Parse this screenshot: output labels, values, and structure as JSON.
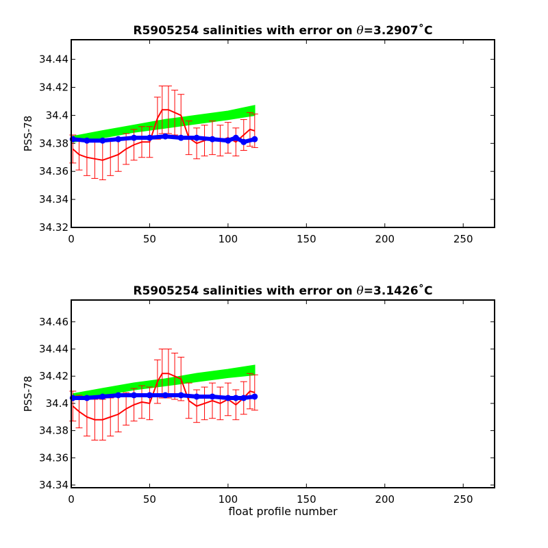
{
  "chart_data": [
    {
      "type": "line",
      "title": "R5905254 salinities with error on θ=3.2907˚C",
      "title_parts": {
        "prefix": "R5905254 salinities with error on ",
        "symbol": "θ",
        "suffix": "=3.2907˚C"
      },
      "xlabel": "",
      "ylabel": "PSS-78",
      "xlim": [
        0,
        270
      ],
      "ylim": [
        34.32,
        34.454
      ],
      "xticks": [
        0,
        50,
        100,
        150,
        200,
        250
      ],
      "yticks": [
        34.32,
        34.34,
        34.36,
        34.38,
        34.4,
        34.42,
        34.44
      ],
      "ytick_labels": [
        "34.32",
        "34.34",
        "34.36",
        "34.38",
        "34.4",
        "34.42",
        "34.44"
      ],
      "grid": false,
      "series": [
        {
          "color": "#00ff00",
          "role": "band",
          "x": [
            1,
            20,
            40,
            60,
            80,
            100,
            117
          ],
          "lower": [
            34.381,
            34.384,
            34.388,
            34.391,
            34.394,
            34.397,
            34.4
          ],
          "upper": [
            34.385,
            34.389,
            34.393,
            34.397,
            34.4,
            34.403,
            34.407
          ]
        },
        {
          "color": "#ff0000",
          "role": "line_with_errorbars",
          "x": [
            1,
            5,
            10,
            15,
            20,
            25,
            30,
            35,
            40,
            45,
            50,
            55,
            58,
            62,
            66,
            70,
            75,
            80,
            85,
            90,
            95,
            100,
            105,
            110,
            114,
            117
          ],
          "y": [
            34.376,
            34.372,
            34.37,
            34.369,
            34.368,
            34.37,
            34.372,
            34.376,
            34.379,
            34.381,
            34.381,
            34.398,
            34.404,
            34.404,
            34.402,
            34.4,
            34.384,
            34.38,
            34.382,
            34.384,
            34.382,
            34.384,
            34.381,
            34.386,
            34.39,
            34.389
          ],
          "err": [
            0.01,
            0.011,
            0.013,
            0.014,
            0.014,
            0.013,
            0.012,
            0.011,
            0.011,
            0.011,
            0.011,
            0.015,
            0.017,
            0.017,
            0.016,
            0.015,
            0.012,
            0.011,
            0.011,
            0.012,
            0.011,
            0.011,
            0.01,
            0.011,
            0.012,
            0.012
          ]
        },
        {
          "color": "#0000ff",
          "role": "markers",
          "x": [
            1,
            10,
            20,
            30,
            40,
            50,
            60,
            70,
            80,
            90,
            100,
            105,
            110,
            117
          ],
          "y": [
            34.383,
            34.382,
            34.382,
            34.383,
            34.384,
            34.384,
            34.385,
            34.384,
            34.384,
            34.383,
            34.382,
            34.384,
            34.381,
            34.383
          ]
        }
      ]
    },
    {
      "type": "line",
      "title": "R5905254 salinities with error on θ=3.1426˚C",
      "title_parts": {
        "prefix": "R5905254 salinities with error on ",
        "symbol": "θ",
        "suffix": "=3.1426˚C"
      },
      "xlabel": "float profile number",
      "ylabel": "PSS-78",
      "xlim": [
        0,
        270
      ],
      "ylim": [
        34.338,
        34.476
      ],
      "xticks": [
        0,
        50,
        100,
        150,
        200,
        250
      ],
      "yticks": [
        34.34,
        34.36,
        34.38,
        34.4,
        34.42,
        34.44,
        34.46
      ],
      "ytick_labels": [
        "34.34",
        "34.36",
        "34.38",
        "34.4",
        "34.42",
        "34.44",
        "34.46"
      ],
      "grid": false,
      "series": [
        {
          "color": "#00ff00",
          "role": "band",
          "x": [
            1,
            20,
            40,
            60,
            80,
            100,
            117
          ],
          "lower": [
            34.403,
            34.406,
            34.41,
            34.413,
            34.416,
            34.419,
            34.421
          ],
          "upper": [
            34.407,
            34.411,
            34.415,
            34.418,
            34.422,
            34.425,
            34.428
          ]
        },
        {
          "color": "#ff0000",
          "role": "line_with_errorbars",
          "x": [
            1,
            5,
            10,
            15,
            20,
            25,
            30,
            35,
            40,
            45,
            50,
            55,
            58,
            62,
            66,
            70,
            75,
            80,
            85,
            90,
            95,
            100,
            105,
            110,
            114,
            117
          ],
          "y": [
            34.398,
            34.394,
            34.39,
            34.388,
            34.388,
            34.39,
            34.392,
            34.396,
            34.399,
            34.401,
            34.4,
            34.416,
            34.422,
            34.422,
            34.42,
            34.418,
            34.402,
            34.398,
            34.4,
            34.402,
            34.4,
            34.403,
            34.399,
            34.404,
            34.409,
            34.408
          ],
          "err": [
            0.011,
            0.012,
            0.014,
            0.015,
            0.015,
            0.014,
            0.013,
            0.012,
            0.012,
            0.012,
            0.012,
            0.016,
            0.018,
            0.018,
            0.017,
            0.016,
            0.013,
            0.012,
            0.012,
            0.013,
            0.012,
            0.012,
            0.011,
            0.012,
            0.013,
            0.013
          ]
        },
        {
          "color": "#0000ff",
          "role": "markers",
          "x": [
            1,
            10,
            20,
            30,
            40,
            50,
            60,
            70,
            80,
            90,
            100,
            105,
            110,
            117
          ],
          "y": [
            34.404,
            34.404,
            34.405,
            34.406,
            34.406,
            34.406,
            34.406,
            34.406,
            34.405,
            34.405,
            34.404,
            34.404,
            34.404,
            34.405
          ]
        }
      ]
    }
  ]
}
